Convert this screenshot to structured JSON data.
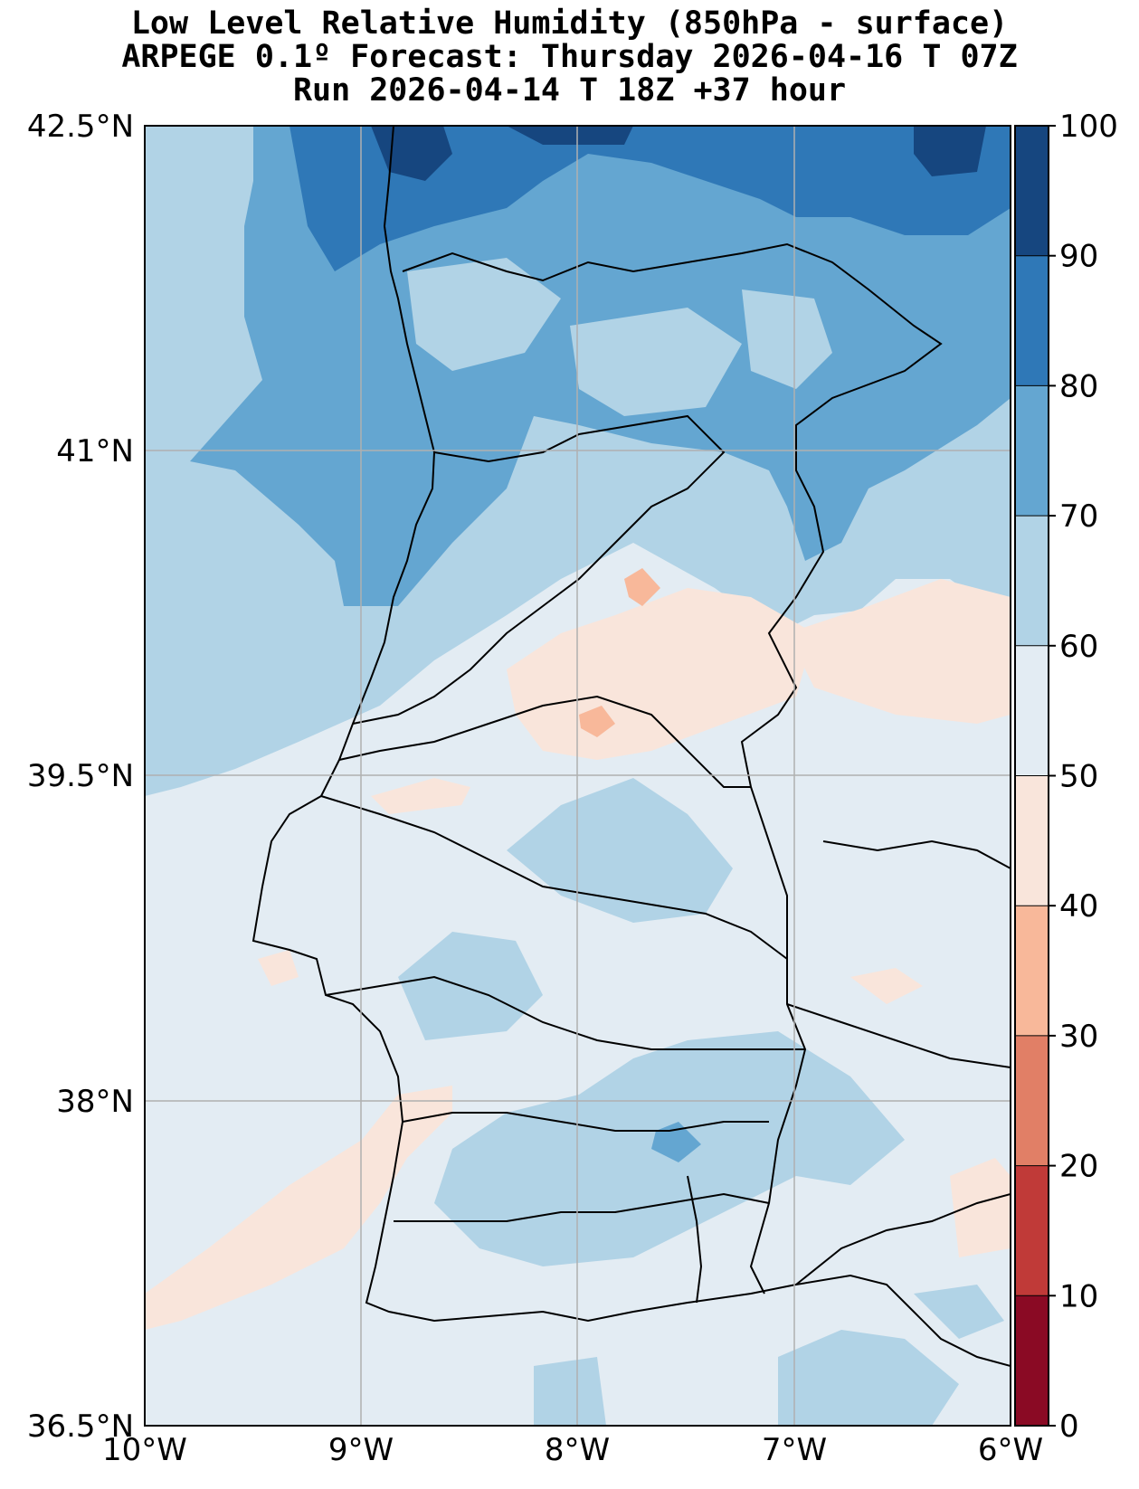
{
  "title": {
    "line1": "Low Level Relative Humidity (850hPa - surface)",
    "line2": "ARPEGE 0.1º Forecast: Thursday 2026-04-16 T 07Z",
    "line3": "Run 2026-04-14 T 18Z +37 hour"
  },
  "map": {
    "lat_ticks": [
      "42.5°N",
      "41°N",
      "39.5°N",
      "38°N",
      "36.5°N"
    ],
    "lon_ticks": [
      "10°W",
      "9°W",
      "8°W",
      "7°W",
      "6°W"
    ],
    "extent": {
      "lon": [
        -10,
        -6
      ],
      "lat": [
        36.5,
        42.5
      ]
    },
    "grid": true
  },
  "colorbar": {
    "labels": [
      "100",
      "90",
      "80",
      "70",
      "60",
      "50",
      "40",
      "30",
      "20",
      "10",
      "0"
    ],
    "colors": [
      "#16467f",
      "#2f78b7",
      "#64a6d1",
      "#b1d3e6",
      "#e3ecf3",
      "#f9e5db",
      "#f8b89a",
      "#e17f66",
      "#c03a38",
      "#8a0a24"
    ]
  }
}
